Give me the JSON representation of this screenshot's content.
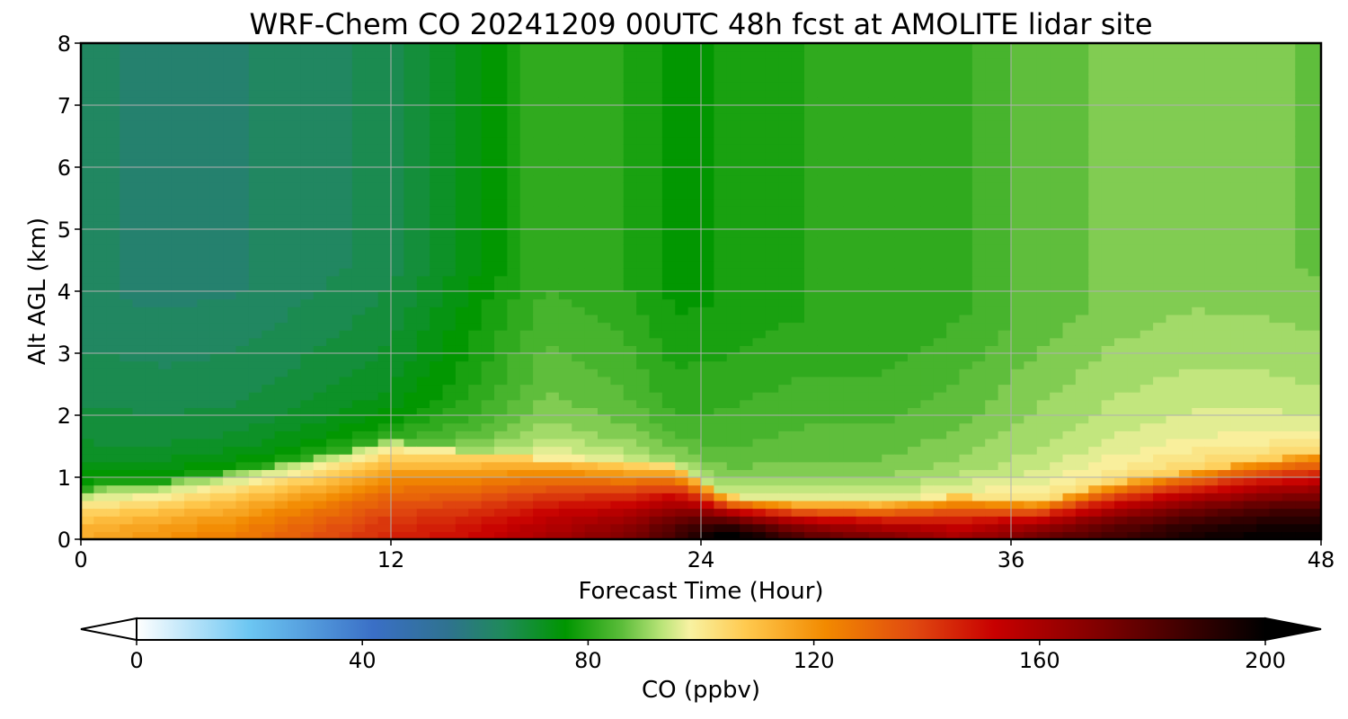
{
  "chart_data": {
    "type": "heatmap",
    "title": "WRF-Chem CO  20241209 00UTC 48h fcst at AMOLITE lidar site",
    "xlabel": "Forecast Time (Hour)",
    "ylabel": "Alt AGL (km)",
    "xlim": [
      0,
      48
    ],
    "ylim": [
      0,
      8
    ],
    "xticks": [
      0,
      12,
      24,
      36,
      48
    ],
    "yticks": [
      0,
      1,
      2,
      3,
      4,
      5,
      6,
      7,
      8
    ],
    "grid": true,
    "colorbar": {
      "label": "CO  (ppbv)",
      "range": [
        0,
        200
      ],
      "ticks": [
        0,
        40,
        80,
        120,
        160,
        200
      ],
      "extend": "both",
      "stops": [
        {
          "v": 0,
          "c": "#ffffff"
        },
        {
          "v": 20,
          "c": "#6cc6f2"
        },
        {
          "v": 42,
          "c": "#3a6fc6"
        },
        {
          "v": 55,
          "c": "#2f7290"
        },
        {
          "v": 65,
          "c": "#1f8a5a"
        },
        {
          "v": 76,
          "c": "#009600"
        },
        {
          "v": 86,
          "c": "#5cbd3a"
        },
        {
          "v": 93,
          "c": "#b9e478"
        },
        {
          "v": 98,
          "c": "#f8f2a2"
        },
        {
          "v": 108,
          "c": "#ffc94e"
        },
        {
          "v": 122,
          "c": "#f28a00"
        },
        {
          "v": 138,
          "c": "#e04810"
        },
        {
          "v": 152,
          "c": "#c80000"
        },
        {
          "v": 172,
          "c": "#7a0000"
        },
        {
          "v": 200,
          "c": "#000000"
        }
      ]
    },
    "field_description_keypoints": {
      "hours": [
        0,
        3,
        6,
        9,
        12,
        15,
        18,
        21,
        23,
        25,
        28,
        31,
        34,
        37,
        40,
        43,
        46,
        48
      ],
      "boundary_layer_top_km": [
        0.8,
        0.9,
        1.1,
        1.3,
        1.6,
        1.4,
        1.3,
        1.2,
        1.2,
        0.7,
        0.6,
        0.6,
        0.7,
        0.6,
        0.9,
        1.1,
        1.3,
        1.4
      ],
      "surface_co_ppbv": [
        115,
        120,
        125,
        135,
        145,
        150,
        160,
        170,
        185,
        205,
        180,
        170,
        160,
        175,
        185,
        195,
        200,
        200
      ],
      "free_trop_co_ppbv_upper": [
        63,
        62,
        62,
        64,
        66,
        74,
        82,
        80,
        76,
        78,
        80,
        80,
        82,
        86,
        88,
        89,
        88,
        87
      ]
    }
  }
}
